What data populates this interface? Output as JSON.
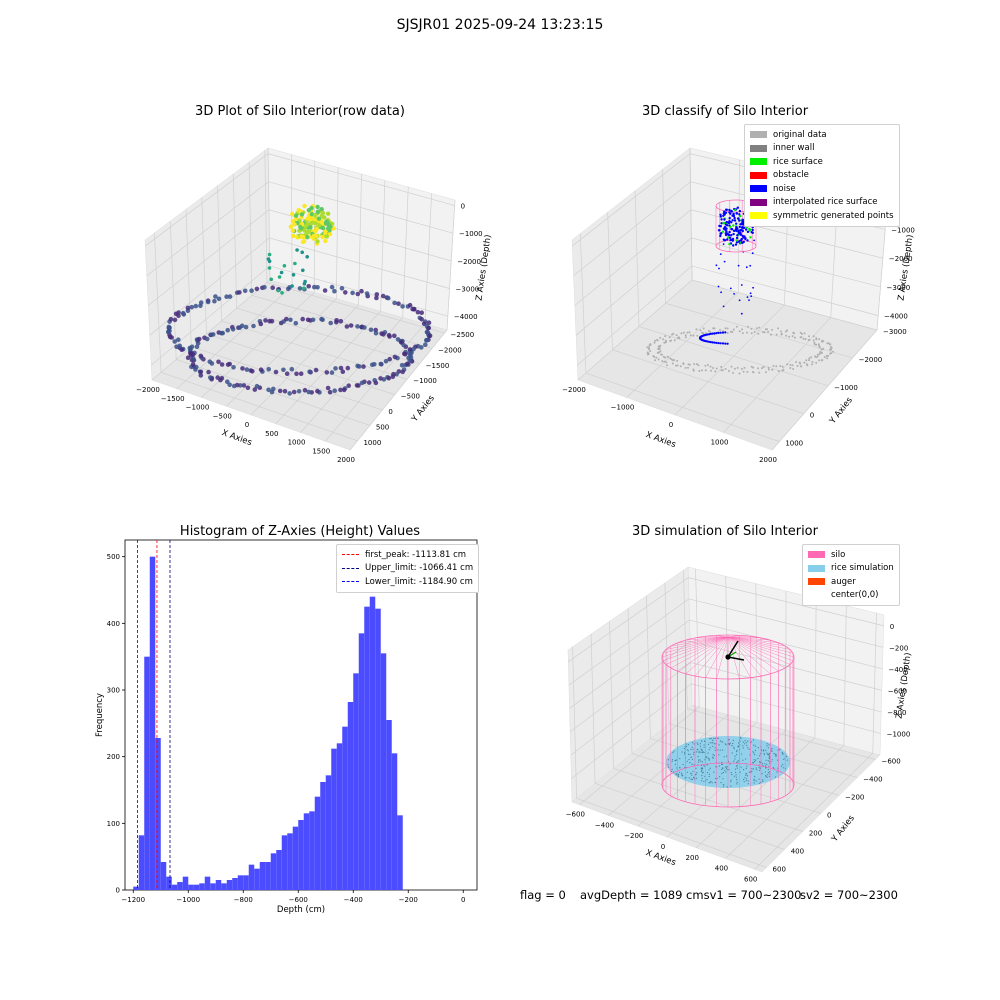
{
  "suptitle": "SJSJR01 2025-09-24 13:23:15",
  "panel_titles": {
    "raw": "3D Plot of Silo Interior(row data)",
    "classify": "3D classify of Silo Interior",
    "histogram": "Histogram of Z-Axies (Height) Values",
    "simulation": "3D simulation of Silo Interior"
  },
  "axis_labels": {
    "x": "X Axies",
    "y": "Y Axies",
    "z": "Z Axies (Depth)",
    "hist_x": "Depth (cm)",
    "hist_y": "Frequency"
  },
  "footer": {
    "flag": "flag = 0",
    "avg_depth": "avgDepth = 1089 cmsv1 = 700~2300",
    "sv2": "sv2 = 700~2300"
  },
  "legends": {
    "classify": [
      {
        "label": "original data",
        "color": "#b0b0b0"
      },
      {
        "label": "inner wall",
        "color": "#808080"
      },
      {
        "label": "rice surface",
        "color": "#00ee00"
      },
      {
        "label": "obstacle",
        "color": "#ff0000"
      },
      {
        "label": "noise",
        "color": "#0000ff"
      },
      {
        "label": "interpolated rice surface",
        "color": "#800080"
      },
      {
        "label": "symmetric generated points",
        "color": "#ffff00"
      }
    ],
    "simulation": [
      {
        "label": "silo",
        "color": "#ff69b4"
      },
      {
        "label": "rice simulation",
        "color": "#87ceeb"
      },
      {
        "label": "auger",
        "color": "#ff4500"
      },
      {
        "label": "center(0,0)",
        "color": "#ffffff"
      }
    ]
  },
  "chart_data": [
    {
      "type": "scatter",
      "title": "3D Plot of Silo Interior(row data)",
      "xlabel": "X Axies",
      "ylabel": "Y Axies",
      "zlabel": "Z Axies (Depth)",
      "x_ticks": [
        -2000,
        -1500,
        -1000,
        -500,
        0,
        500,
        1000,
        1500,
        2000
      ],
      "y_ticks": [
        1000,
        500,
        0,
        -500,
        -1000,
        -1500,
        -2000,
        -2500
      ],
      "z_ticks": [
        0,
        -1000,
        -2000,
        -3000,
        -4000
      ],
      "xlim": [
        -2000,
        2000
      ],
      "ylim": [
        -2600,
        1300
      ],
      "zlim": [
        -4500,
        200
      ],
      "grid": true,
      "colormap": "viridis"
    },
    {
      "type": "scatter",
      "title": "3D classify of Silo Interior",
      "xlabel": "X Axies",
      "ylabel": "Y Axies",
      "zlabel": "Z Axies (Depth)",
      "x_ticks": [
        -2000,
        -1000,
        0,
        1000,
        2000
      ],
      "y_ticks": [
        1000,
        0,
        -1000,
        -2000,
        -3000
      ],
      "z_ticks": [
        0,
        -1000,
        -2000,
        -3000,
        -4000
      ],
      "xlim": [
        -2000,
        2000
      ],
      "ylim": [
        -3000,
        1300
      ],
      "zlim": [
        -4500,
        200
      ],
      "grid": true,
      "legend_position": "top-right"
    },
    {
      "type": "bar",
      "title": "Histogram of Z-Axies (Height) Values",
      "xlabel": "Depth (cm)",
      "ylabel": "Frequency",
      "x_ticks": [
        -1200,
        -1000,
        -800,
        -600,
        -400,
        -200,
        0
      ],
      "y_ticks": [
        0,
        100,
        200,
        300,
        400,
        500
      ],
      "xlim": [
        -1230,
        50
      ],
      "ylim": [
        0,
        525
      ],
      "bin_start": -1200,
      "bin_width": 20,
      "values": [
        5,
        82,
        350,
        500,
        228,
        42,
        20,
        8,
        12,
        20,
        8,
        8,
        10,
        20,
        10,
        15,
        10,
        15,
        18,
        22,
        22,
        38,
        32,
        42,
        42,
        55,
        60,
        82,
        85,
        95,
        105,
        115,
        118,
        140,
        162,
        172,
        212,
        220,
        245,
        282,
        325,
        385,
        425,
        440,
        422,
        355,
        255,
        205,
        112
      ],
      "bar_color": "#4b4bff",
      "vlines": [
        {
          "label": "first_peak: -1113.81 cm",
          "value": -1113.81,
          "color": "#ff0000"
        },
        {
          "label": "Upper_limit: -1066.41 cm",
          "value": -1066.41,
          "color": "#000080"
        },
        {
          "label": "Lower_limit: -1184.90 cm",
          "value": -1184.9,
          "color": "#0000ff"
        }
      ],
      "legend_position": "top-right"
    },
    {
      "type": "scatter",
      "title": "3D simulation of Silo Interior",
      "xlabel": "X Axies",
      "ylabel": "Y Axies",
      "zlabel": "Z Axies (Depth)",
      "x_ticks": [
        -600,
        -400,
        -200,
        0,
        200,
        400,
        600
      ],
      "y_ticks": [
        600,
        400,
        200,
        0,
        -200,
        -400,
        -600
      ],
      "z_ticks": [
        0,
        -200,
        -400,
        -600,
        -800,
        -1000
      ],
      "xlim": [
        -650,
        650
      ],
      "ylim": [
        -650,
        650
      ],
      "zlim": [
        -1200,
        100
      ],
      "silo_radius": 600,
      "silo_depth": 1089,
      "grid": true,
      "legend_position": "top-right"
    }
  ]
}
